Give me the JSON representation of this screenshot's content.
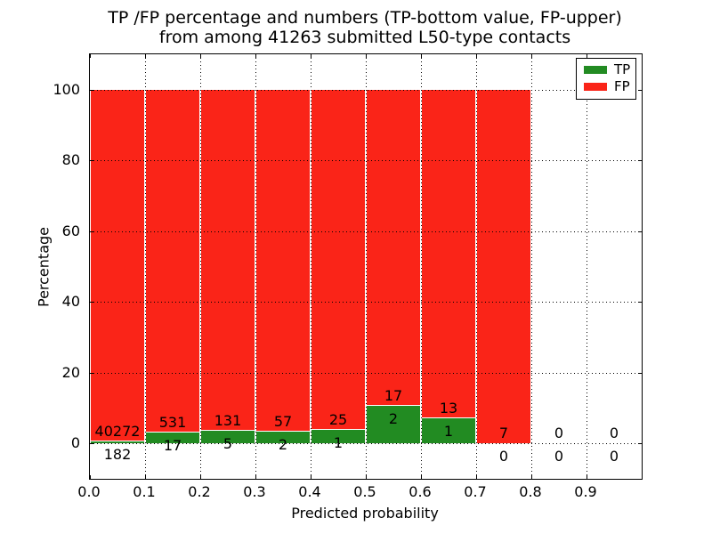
{
  "title": {
    "line1": "TP /FP percentage and numbers (TP-bottom value, FP-upper)",
    "line2": "from among 41263 submitted L50-type contacts"
  },
  "axes": {
    "xlabel": "Predicted probability",
    "ylabel": "Percentage"
  },
  "legend": [
    {
      "label": "TP",
      "color": "#228b22"
    },
    {
      "label": "FP",
      "color": "#fa2418"
    }
  ],
  "colors": {
    "tp_green": "#228b22",
    "fp_red": "#fa2418",
    "grid": "#000000",
    "background": "#ffffff"
  },
  "chart_data": {
    "type": "bar",
    "stacked": true,
    "title": "TP /FP percentage and numbers (TP-bottom value, FP-upper) from among 41263 submitted L50-type contacts",
    "xlabel": "Predicted probability",
    "ylabel": "Percentage",
    "bin_edges": [
      0.0,
      0.1,
      0.2,
      0.3,
      0.4,
      0.5,
      0.6,
      0.7,
      0.8,
      0.9,
      1.0
    ],
    "series": [
      {
        "name": "TP",
        "color": "#228b22",
        "counts": [
          182,
          17,
          5,
          2,
          1,
          2,
          1,
          0,
          0,
          0
        ]
      },
      {
        "name": "FP",
        "color": "#fa2418",
        "counts": [
          40272,
          531,
          131,
          57,
          25,
          17,
          13,
          7,
          0,
          0
        ]
      }
    ],
    "bar_value_semantics": "each nonempty bin is drawn to 100% total; green segment height = TP/(TP+FP)*100, red segment = FP/(TP+FP)*100; FP count printed above green top, TP count printed below green top",
    "x_ticks": [
      "0.0",
      "0.1",
      "0.2",
      "0.3",
      "0.4",
      "0.5",
      "0.6",
      "0.7",
      "0.8",
      "0.9"
    ],
    "y_ticks": [
      0,
      20,
      40,
      60,
      80,
      100
    ],
    "xlim": [
      0.0,
      1.0
    ],
    "ylim": [
      -10,
      110
    ],
    "grid": "dotted",
    "legend_position": "upper right"
  }
}
